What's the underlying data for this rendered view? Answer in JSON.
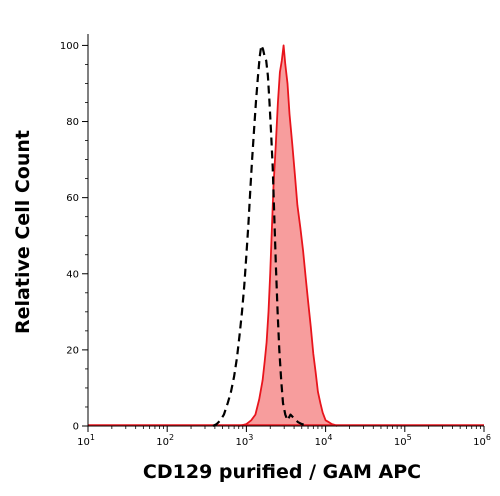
{
  "chart_data": {
    "type": "area",
    "title": "",
    "xlabel": "CD129 purified / GAM APC",
    "ylabel": "Relative Cell Count",
    "x_scale": "log",
    "xlim": [
      10,
      1000000
    ],
    "ylim": [
      0,
      103
    ],
    "x_ticks": [
      {
        "value": 10,
        "base": "10",
        "exp": "1"
      },
      {
        "value": 100,
        "base": "10",
        "exp": "2"
      },
      {
        "value": 1000,
        "base": "10",
        "exp": "3"
      },
      {
        "value": 10000,
        "base": "10",
        "exp": "4"
      },
      {
        "value": 100000,
        "base": "10",
        "exp": "5"
      },
      {
        "value": 1000000,
        "base": "10",
        "exp": "6"
      }
    ],
    "y_ticks": [
      0,
      20,
      40,
      60,
      80,
      100
    ],
    "grid": false,
    "legend": "none",
    "series": [
      {
        "style": "dashed black line (isotype control)",
        "color": "#000000",
        "x": [
          380,
          420,
          470,
          520,
          580,
          640,
          700,
          760,
          820,
          880,
          940,
          1000,
          1060,
          1120,
          1180,
          1250,
          1320,
          1400,
          1470,
          1540,
          1620,
          1700,
          1780,
          1870,
          1960,
          2050,
          2150,
          2250,
          2360,
          2480,
          2600,
          2750,
          2900,
          3100,
          3300,
          3600,
          4000,
          4500,
          5000,
          5500,
          6000
        ],
        "y": [
          0,
          0.5,
          1.5,
          3,
          6,
          9,
          13,
          18,
          24,
          30,
          37,
          45,
          53,
          62,
          70,
          78,
          85,
          92,
          97,
          100,
          99,
          97,
          96,
          92,
          85,
          77,
          68,
          55,
          42,
          30,
          20,
          12,
          6,
          3,
          1.5,
          3,
          2,
          1,
          0.5,
          0.3,
          0
        ]
      },
      {
        "style": "red line with light red fill (CD129 stained)",
        "color": "#e8141c",
        "fill": "#f79d9d",
        "x": [
          800,
          1000,
          1150,
          1300,
          1450,
          1600,
          1700,
          1800,
          1900,
          2000,
          2100,
          2200,
          2350,
          2500,
          2650,
          2800,
          2950,
          3100,
          3300,
          3500,
          3800,
          4100,
          4400,
          4800,
          5200,
          5600,
          6000,
          6500,
          7000,
          7500,
          8000,
          8600,
          9200,
          10000,
          11000,
          12000,
          13000,
          14000
        ],
        "y": [
          0,
          0.5,
          1.5,
          3,
          7,
          12,
          17,
          22,
          30,
          40,
          52,
          63,
          74,
          85,
          93,
          96,
          100,
          95,
          90,
          82,
          74,
          66,
          58,
          52,
          46,
          39,
          33,
          26,
          19,
          14,
          9,
          6,
          3.5,
          1.5,
          1,
          0.5,
          0.3,
          0
        ]
      }
    ]
  }
}
